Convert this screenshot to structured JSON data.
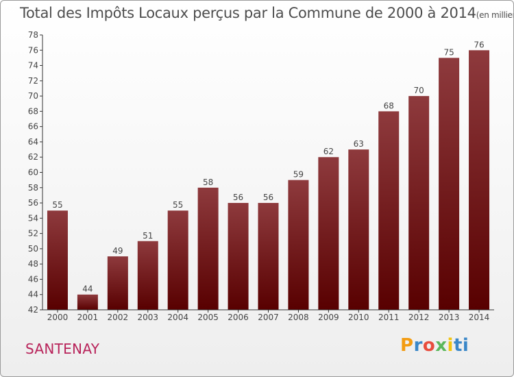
{
  "chart_data": {
    "type": "bar",
    "title": "Total des Impôts Locaux perçus par la Commune de 2000 à 2014",
    "title_unit": "(en milliers d'€)",
    "categories": [
      "2000",
      "2001",
      "2002",
      "2003",
      "2004",
      "2005",
      "2006",
      "2007",
      "2008",
      "2009",
      "2010",
      "2011",
      "2012",
      "2013",
      "2014"
    ],
    "values": [
      55,
      44,
      49,
      51,
      55,
      58,
      56,
      56,
      59,
      62,
      63,
      68,
      70,
      75,
      76
    ],
    "ylim": [
      42,
      78
    ],
    "yticks": [
      42,
      44,
      46,
      48,
      50,
      52,
      54,
      56,
      58,
      60,
      62,
      64,
      66,
      68,
      70,
      72,
      74,
      76,
      78
    ],
    "xlabel": "",
    "ylabel": "",
    "grid": false,
    "bar_color": "#8b1a1a"
  },
  "commune": "SANTENAY",
  "brand": {
    "name": "Proxiti",
    "letters": [
      "P",
      "r",
      "o",
      "x",
      "i",
      "ti"
    ]
  }
}
